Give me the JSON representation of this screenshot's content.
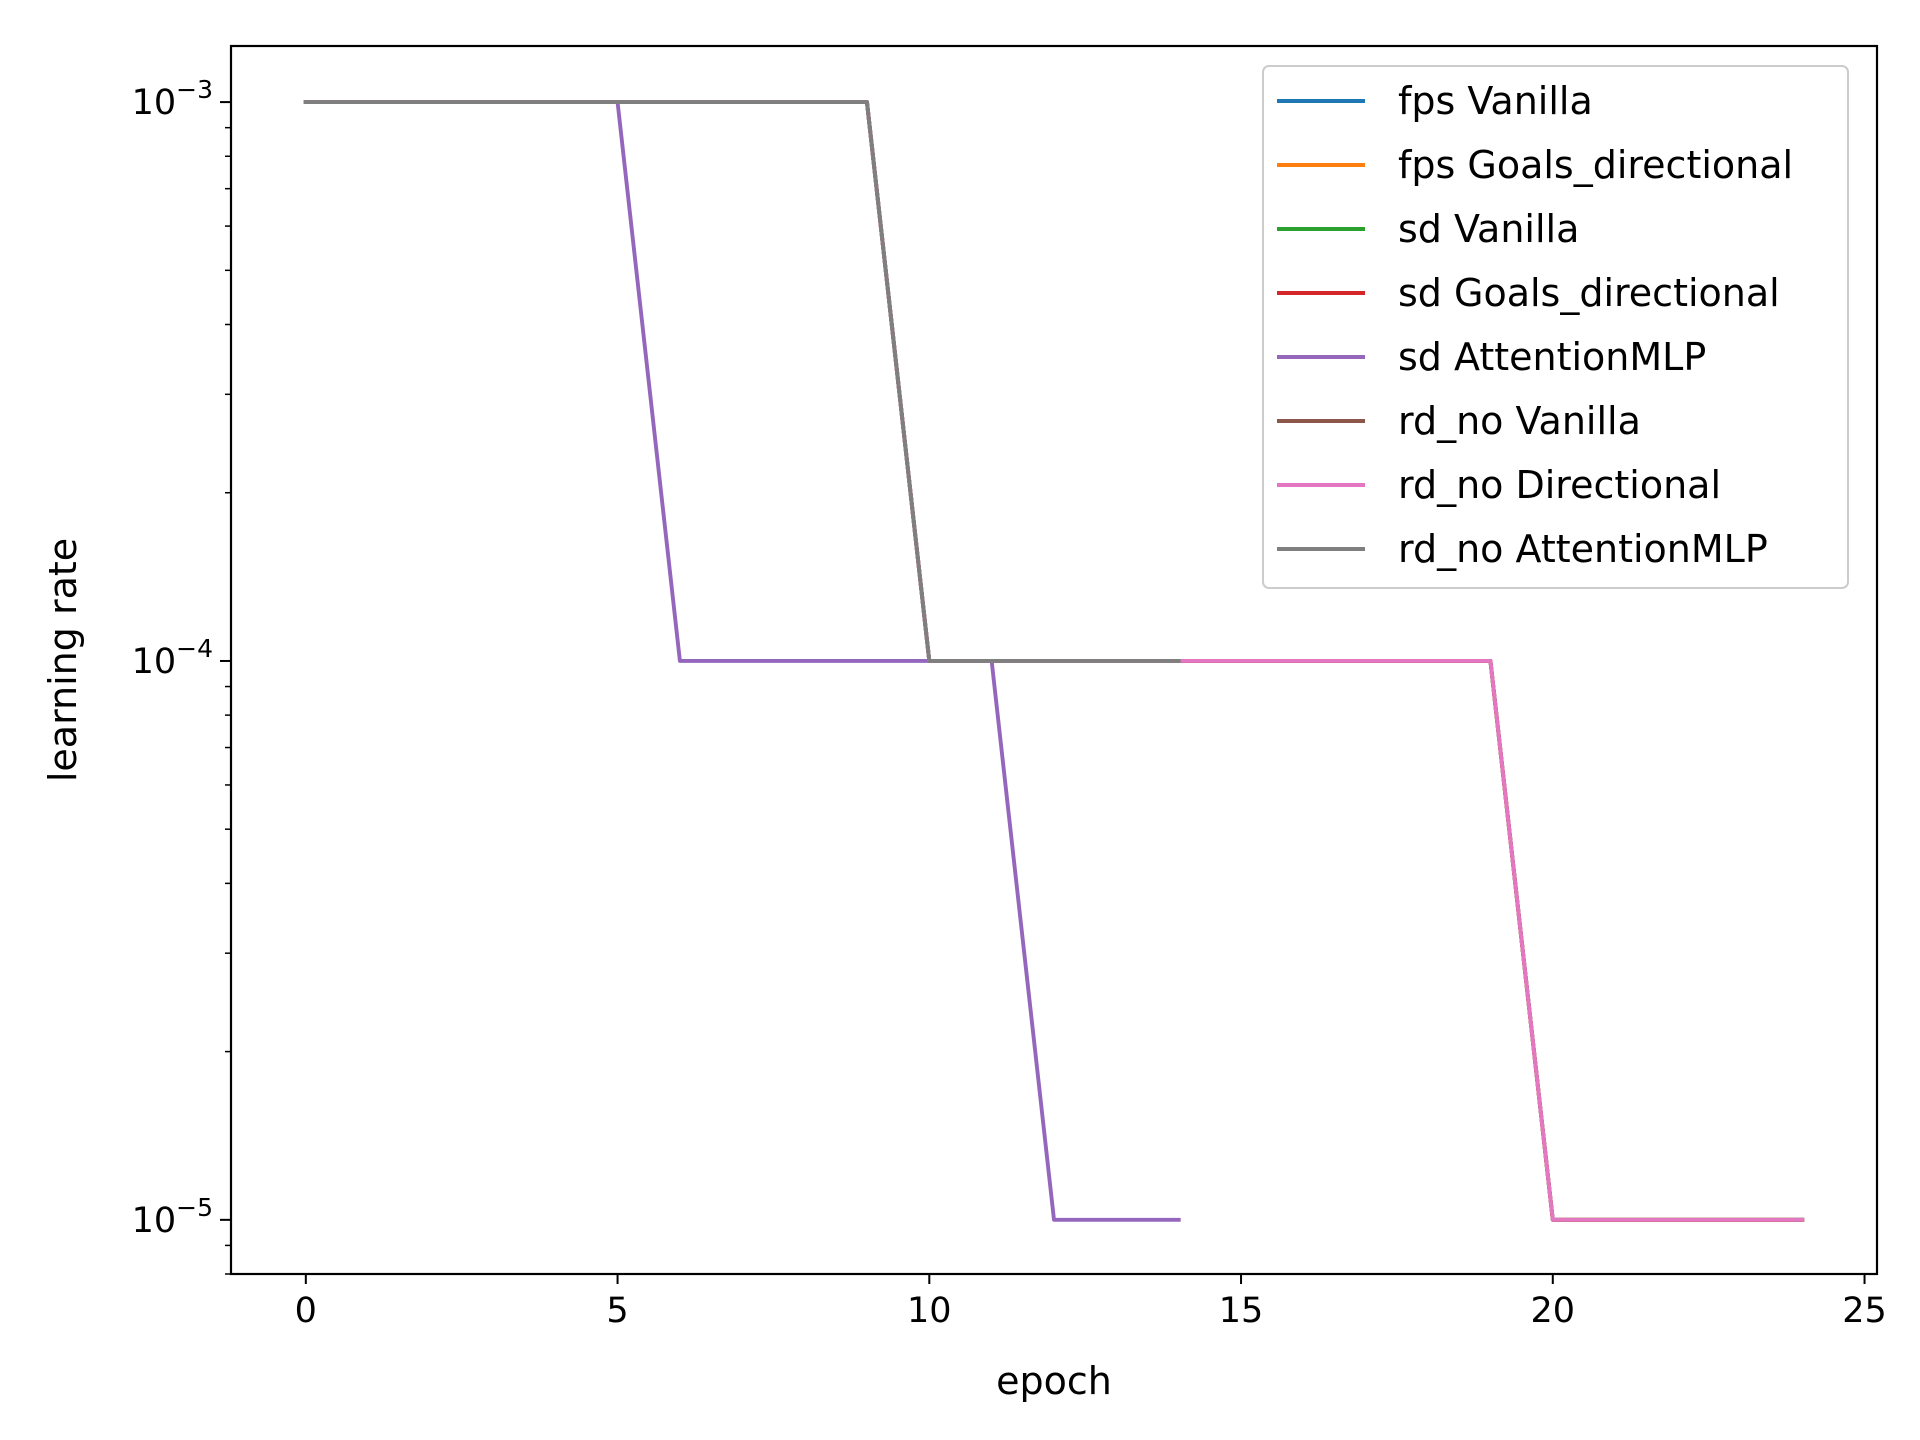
{
  "chart_data": {
    "type": "line",
    "xlabel": "epoch",
    "ylabel": "learning rate",
    "yscale": "log",
    "xlim": [
      -1.2,
      25.2
    ],
    "ylim": [
      8e-06,
      0.00126
    ],
    "x_ticks": [
      0,
      5,
      10,
      15,
      20,
      25
    ],
    "x_tick_labels": [
      "0",
      "5",
      "10",
      "15",
      "20",
      "25"
    ],
    "y_ticks": [
      0.001,
      0.0001,
      1e-05
    ],
    "y_tick_labels": [
      {
        "base": "10",
        "exp": "−3"
      },
      {
        "base": "10",
        "exp": "−4"
      },
      {
        "base": "10",
        "exp": "−5"
      }
    ],
    "grid": false,
    "legend_position": "top-right",
    "series": [
      {
        "name": "fps Vanilla",
        "color": "#1f77b4",
        "x": [
          0,
          1,
          2,
          3,
          4,
          5,
          6,
          7,
          8,
          9,
          10,
          11,
          12,
          13,
          14,
          15,
          16,
          17,
          18,
          19,
          20,
          21,
          22,
          23,
          24
        ],
        "y": [
          0.001,
          0.001,
          0.001,
          0.001,
          0.001,
          0.001,
          0.001,
          0.001,
          0.001,
          0.001,
          0.0001,
          0.0001,
          0.0001,
          0.0001,
          0.0001,
          0.0001,
          0.0001,
          0.0001,
          0.0001,
          0.0001,
          1e-05,
          1e-05,
          1e-05,
          1e-05,
          1e-05
        ]
      },
      {
        "name": "fps Goals_directional",
        "color": "#ff7f0e",
        "x": [
          0,
          1,
          2,
          3,
          4,
          5,
          6,
          7,
          8,
          9,
          10,
          11,
          12,
          13,
          14,
          15,
          16,
          17,
          18,
          19,
          20,
          21,
          22,
          23,
          24
        ],
        "y": [
          0.001,
          0.001,
          0.001,
          0.001,
          0.001,
          0.001,
          0.001,
          0.001,
          0.001,
          0.001,
          0.0001,
          0.0001,
          0.0001,
          0.0001,
          0.0001,
          0.0001,
          0.0001,
          0.0001,
          0.0001,
          0.0001,
          1e-05,
          1e-05,
          1e-05,
          1e-05,
          1e-05
        ]
      },
      {
        "name": "sd Vanilla",
        "color": "#2ca02c",
        "x": [
          0,
          1,
          2,
          3,
          4,
          5,
          6,
          7,
          8,
          9,
          10,
          11,
          12,
          13,
          14,
          15,
          16,
          17,
          18,
          19,
          20,
          21,
          22,
          23,
          24
        ],
        "y": [
          0.001,
          0.001,
          0.001,
          0.001,
          0.001,
          0.001,
          0.001,
          0.001,
          0.001,
          0.001,
          0.0001,
          0.0001,
          0.0001,
          0.0001,
          0.0001,
          0.0001,
          0.0001,
          0.0001,
          0.0001,
          0.0001,
          1e-05,
          1e-05,
          1e-05,
          1e-05,
          1e-05
        ]
      },
      {
        "name": "sd Goals_directional",
        "color": "#d62728",
        "x": [
          0,
          1,
          2,
          3,
          4,
          5,
          6,
          7,
          8,
          9,
          10,
          11,
          12,
          13,
          14,
          15,
          16,
          17,
          18,
          19,
          20,
          21,
          22,
          23,
          24
        ],
        "y": [
          0.001,
          0.001,
          0.001,
          0.001,
          0.001,
          0.001,
          0.001,
          0.001,
          0.001,
          0.001,
          0.0001,
          0.0001,
          0.0001,
          0.0001,
          0.0001,
          0.0001,
          0.0001,
          0.0001,
          0.0001,
          0.0001,
          1e-05,
          1e-05,
          1e-05,
          1e-05,
          1e-05
        ]
      },
      {
        "name": "sd AttentionMLP",
        "color": "#9467bd",
        "x": [
          0,
          1,
          2,
          3,
          4,
          5,
          6,
          7,
          8,
          9,
          10,
          11,
          12,
          13,
          14
        ],
        "y": [
          0.001,
          0.001,
          0.001,
          0.001,
          0.001,
          0.001,
          0.0001,
          0.0001,
          0.0001,
          0.0001,
          0.0001,
          0.0001,
          1e-05,
          1e-05,
          1e-05
        ]
      },
      {
        "name": "rd_no Vanilla",
        "color": "#8c564b",
        "x": [
          0,
          1,
          2,
          3,
          4,
          5,
          6,
          7,
          8,
          9,
          10,
          11,
          12,
          13,
          14
        ],
        "y": [
          0.001,
          0.001,
          0.001,
          0.001,
          0.001,
          0.001,
          0.001,
          0.001,
          0.001,
          0.001,
          0.0001,
          0.0001,
          0.0001,
          0.0001,
          0.0001
        ]
      },
      {
        "name": "rd_no Directional",
        "color": "#e377c2",
        "x": [
          0,
          1,
          2,
          3,
          4,
          5,
          6,
          7,
          8,
          9,
          10,
          11,
          12,
          13,
          14,
          15,
          16,
          17,
          18,
          19,
          20,
          21,
          22,
          23,
          24
        ],
        "y": [
          0.001,
          0.001,
          0.001,
          0.001,
          0.001,
          0.001,
          0.001,
          0.001,
          0.001,
          0.001,
          0.0001,
          0.0001,
          0.0001,
          0.0001,
          0.0001,
          0.0001,
          0.0001,
          0.0001,
          0.0001,
          0.0001,
          1e-05,
          1e-05,
          1e-05,
          1e-05,
          1e-05
        ]
      },
      {
        "name": "rd_no AttentionMLP",
        "color": "#7f7f7f",
        "x": [
          0,
          1,
          2,
          3,
          4,
          5,
          6,
          7,
          8,
          9,
          10,
          11,
          12,
          13,
          14
        ],
        "y": [
          0.001,
          0.001,
          0.001,
          0.001,
          0.001,
          0.001,
          0.001,
          0.001,
          0.001,
          0.001,
          0.0001,
          0.0001,
          0.0001,
          0.0001,
          0.0001
        ]
      }
    ]
  }
}
